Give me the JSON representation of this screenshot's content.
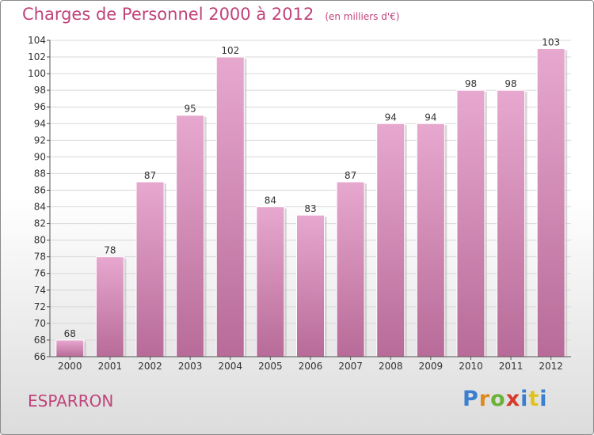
{
  "header": {
    "title": "Charges de Personnel 2000 à 2012",
    "subtitle": "(en milliers d'€)"
  },
  "footer": {
    "town": "ESPARRON",
    "brand": "Proxiti"
  },
  "colors": {
    "accent": "#c0437a",
    "bar_light": "#e7a8cf",
    "bar_dark": "#b86b98"
  },
  "chart_data": {
    "type": "bar",
    "title": "Charges de Personnel 2000 à 2012",
    "subtitle": "(en milliers d'€)",
    "xlabel": "",
    "ylabel": "",
    "categories": [
      "2000",
      "2001",
      "2002",
      "2003",
      "2004",
      "2005",
      "2006",
      "2007",
      "2008",
      "2009",
      "2010",
      "2011",
      "2012"
    ],
    "values": [
      68,
      78,
      87,
      95,
      102,
      84,
      83,
      87,
      94,
      94,
      98,
      98,
      103
    ],
    "ylim": [
      66,
      104
    ],
    "yticks": [
      66,
      68,
      70,
      72,
      74,
      76,
      78,
      80,
      82,
      84,
      86,
      88,
      90,
      92,
      94,
      96,
      98,
      100,
      102,
      104
    ],
    "grid": true,
    "legend": "none"
  }
}
